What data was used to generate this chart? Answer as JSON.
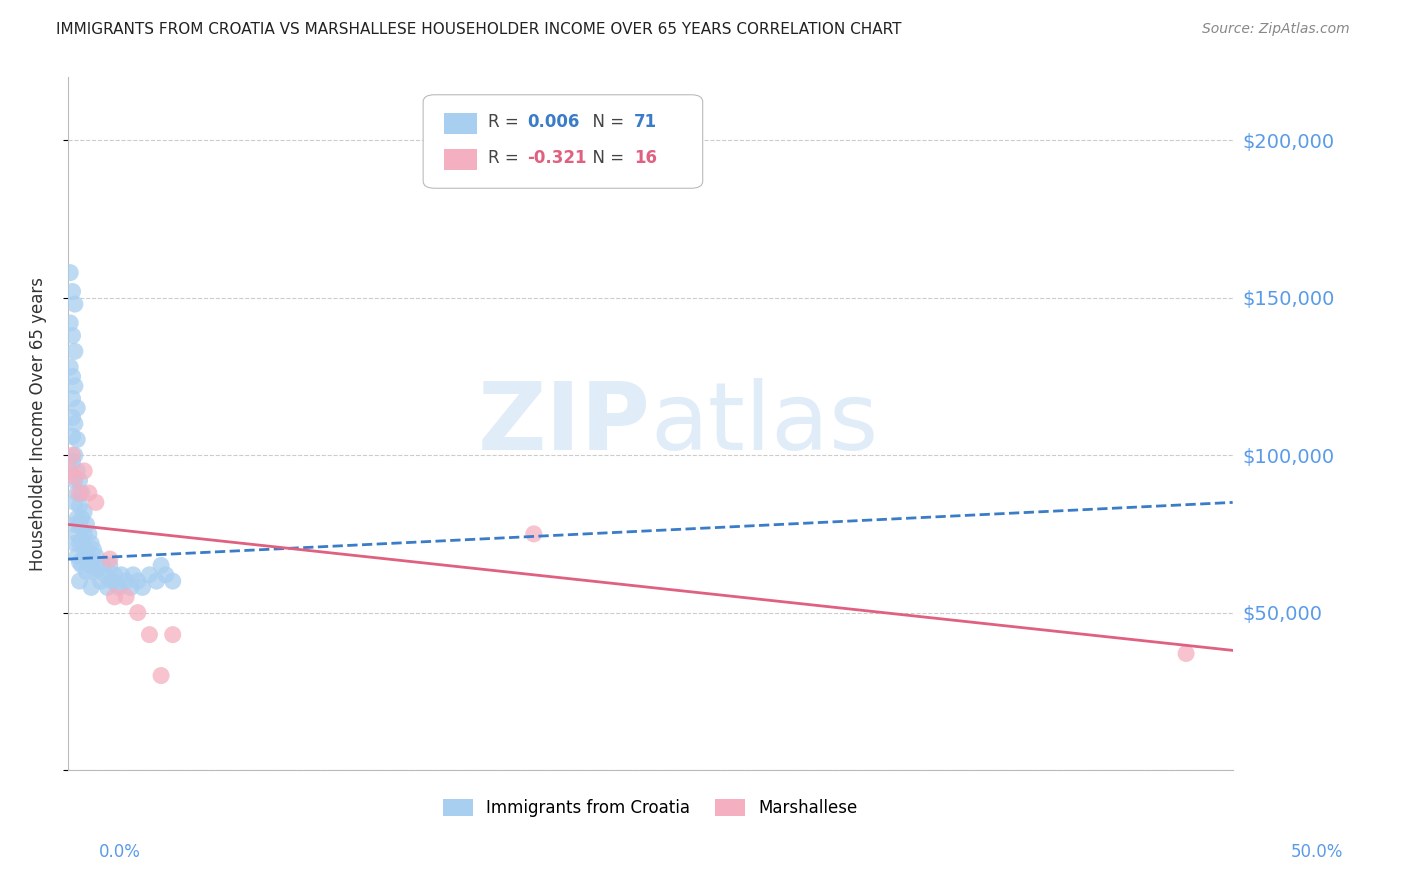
{
  "title": "IMMIGRANTS FROM CROATIA VS MARSHALLESE HOUSEHOLDER INCOME OVER 65 YEARS CORRELATION CHART",
  "source": "Source: ZipAtlas.com",
  "ylabel": "Householder Income Over 65 years",
  "watermark": "ZIPatlas",
  "xlim": [
    0.0,
    0.5
  ],
  "ylim": [
    0,
    220000
  ],
  "yticks": [
    0,
    50000,
    100000,
    150000,
    200000
  ],
  "ytick_labels": [
    "",
    "$50,000",
    "$100,000",
    "$150,000",
    "$200,000"
  ],
  "xtick_left": "0.0%",
  "xtick_right": "50.0%",
  "series1_label": "Immigrants from Croatia",
  "series1_R": "0.006",
  "series1_N": "71",
  "series1_color": "#a8cef0",
  "series1_line_color": "#3a7cc7",
  "series2_label": "Marshallese",
  "series2_R": "-0.321",
  "series2_N": "16",
  "series2_color": "#f4afc0",
  "series2_line_color": "#e06080",
  "background_color": "#ffffff",
  "grid_color": "#cccccc",
  "title_color": "#222222",
  "yaxis_right_color": "#5a9be8",
  "croatia_x": [
    0.001,
    0.001,
    0.001,
    0.002,
    0.002,
    0.002,
    0.002,
    0.002,
    0.002,
    0.002,
    0.003,
    0.003,
    0.003,
    0.003,
    0.003,
    0.003,
    0.003,
    0.003,
    0.003,
    0.004,
    0.004,
    0.004,
    0.004,
    0.004,
    0.004,
    0.004,
    0.005,
    0.005,
    0.005,
    0.005,
    0.005,
    0.005,
    0.006,
    0.006,
    0.006,
    0.006,
    0.007,
    0.007,
    0.007,
    0.008,
    0.008,
    0.008,
    0.009,
    0.009,
    0.01,
    0.01,
    0.01,
    0.011,
    0.011,
    0.012,
    0.013,
    0.014,
    0.015,
    0.016,
    0.017,
    0.018,
    0.019,
    0.02,
    0.021,
    0.022,
    0.023,
    0.025,
    0.027,
    0.028,
    0.03,
    0.032,
    0.035,
    0.038,
    0.04,
    0.042,
    0.045
  ],
  "croatia_y": [
    158000,
    142000,
    128000,
    152000,
    138000,
    125000,
    118000,
    112000,
    106000,
    98000,
    148000,
    133000,
    122000,
    110000,
    100000,
    92000,
    85000,
    78000,
    72000,
    115000,
    105000,
    95000,
    88000,
    80000,
    75000,
    68000,
    92000,
    84000,
    78000,
    72000,
    66000,
    60000,
    88000,
    80000,
    73000,
    65000,
    82000,
    75000,
    68000,
    78000,
    70000,
    63000,
    75000,
    67000,
    72000,
    65000,
    58000,
    70000,
    63000,
    68000,
    64000,
    60000,
    65000,
    62000,
    58000,
    65000,
    60000,
    62000,
    59000,
    58000,
    62000,
    60000,
    58000,
    62000,
    60000,
    58000,
    62000,
    60000,
    65000,
    62000,
    60000
  ],
  "marshallese_x": [
    0.001,
    0.002,
    0.003,
    0.005,
    0.007,
    0.009,
    0.012,
    0.018,
    0.02,
    0.025,
    0.03,
    0.035,
    0.04,
    0.045,
    0.2,
    0.48
  ],
  "marshallese_y": [
    95000,
    100000,
    93000,
    88000,
    95000,
    88000,
    85000,
    67000,
    55000,
    55000,
    50000,
    43000,
    30000,
    43000,
    75000,
    37000
  ],
  "croatia_trendline_x": [
    0.0,
    0.5
  ],
  "croatia_trendline_y": [
    67000,
    85000
  ],
  "marshallese_trendline_x": [
    0.0,
    0.5
  ],
  "marshallese_trendline_y": [
    78000,
    38000
  ]
}
